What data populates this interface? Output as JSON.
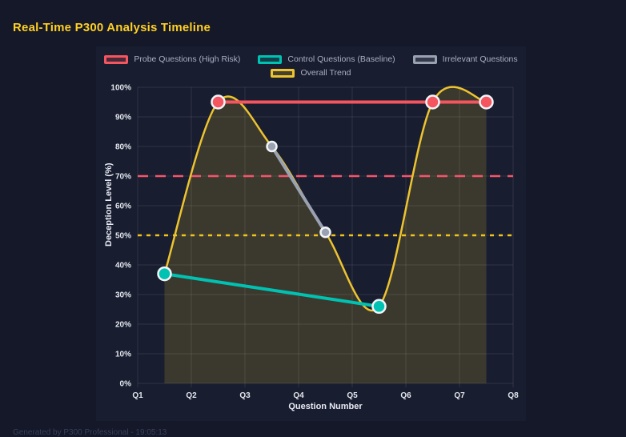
{
  "header": {
    "title": "Real-Time P300 Analysis Timeline"
  },
  "footer": {
    "note": "Generated by P300 Professional - 19:05:13"
  },
  "colors": {
    "title": "#ffd024",
    "page_bg": "#141828",
    "panel_bg": "#181d30",
    "grid": "rgba(255,255,255,0.10)",
    "tick_text": "#e4e7ee",
    "legend_text": "#a9afc2",
    "point_border": "#f1f4f8"
  },
  "legend": {
    "items": [
      {
        "label": "Probe Questions (High Risk)",
        "color": "#f4555e"
      },
      {
        "label": "Control Questions (Baseline)",
        "color": "#00c2b2"
      },
      {
        "label": "Irrelevant Questions",
        "color": "#9aa2b1"
      },
      {
        "label": "Overall Trend",
        "color": "#edc32f"
      }
    ]
  },
  "chart_data": {
    "type": "line",
    "title": "Real-Time P300 Analysis Timeline",
    "xlabel": "Question Number",
    "ylabel": "Deception Level (%)",
    "x_tick_labels": [
      "Q1",
      "Q2",
      "Q3",
      "Q4",
      "Q5",
      "Q6",
      "Q7",
      "Q8"
    ],
    "x_tick_values": [
      1,
      2,
      3,
      4,
      5,
      6,
      7,
      8
    ],
    "xlim": [
      1,
      8
    ],
    "y_tick_labels": [
      "0%",
      "10%",
      "20%",
      "30%",
      "40%",
      "50%",
      "60%",
      "70%",
      "80%",
      "90%",
      "100%"
    ],
    "y_tick_values": [
      0,
      10,
      20,
      30,
      40,
      50,
      60,
      70,
      80,
      90,
      100
    ],
    "ylim": [
      0,
      100
    ],
    "grid": true,
    "legend_position": "top",
    "series": [
      {
        "name": "Overall Trend",
        "color": "#edc32f",
        "points": [
          [
            1.5,
            37
          ],
          [
            2.5,
            95
          ],
          [
            3.5,
            80
          ],
          [
            4.5,
            51
          ],
          [
            5.5,
            26
          ],
          [
            6.5,
            95
          ],
          [
            7.5,
            95
          ]
        ],
        "smooth": true,
        "fill": true,
        "fill_color": "rgba(237,195,42,0.17)",
        "line_width": 2.5,
        "show_points": false
      },
      {
        "name": "Irrelevant Questions",
        "color": "#9aa2b1",
        "points": [
          [
            3.5,
            80
          ],
          [
            4.5,
            51
          ]
        ],
        "smooth": false,
        "fill": false,
        "line_width": 4,
        "show_points": true,
        "point_radius": 6
      },
      {
        "name": "Control Questions (Baseline)",
        "color": "#00c2b2",
        "points": [
          [
            1.5,
            37
          ],
          [
            5.5,
            26
          ]
        ],
        "smooth": false,
        "fill": false,
        "line_width": 4,
        "show_points": true,
        "point_radius": 8
      },
      {
        "name": "Probe Questions (High Risk)",
        "color": "#f4555e",
        "points": [
          [
            2.5,
            95
          ],
          [
            6.5,
            95
          ],
          [
            7.5,
            95
          ]
        ],
        "smooth": false,
        "fill": false,
        "line_width": 4,
        "show_points": true,
        "point_radius": 8
      }
    ],
    "thresholds": [
      {
        "y": 70,
        "color": "#f4556a",
        "dash": [
          13,
          9
        ],
        "line_width": 2.5
      },
      {
        "y": 50,
        "color": "#f0c419",
        "dash": [
          5,
          6
        ],
        "line_width": 2.5
      }
    ]
  }
}
